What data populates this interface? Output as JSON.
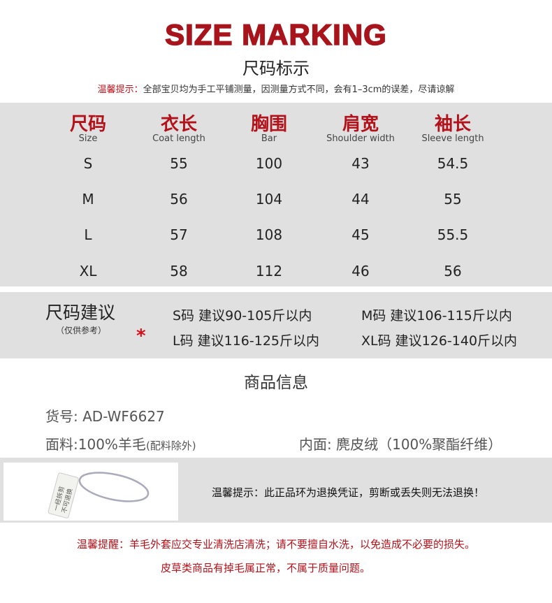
{
  "title": "SIZE MARKING",
  "subtitle": "尺码标示",
  "notice": {
    "label": "温馨提示：",
    "text": "全部宝贝均为手工平铺测量，因测量方式不同，会有1–3cm的误差，尽请谅解"
  },
  "table": {
    "headers": [
      {
        "cn": "尺码",
        "en": "Size"
      },
      {
        "cn": "衣长",
        "en": "Coat length"
      },
      {
        "cn": "胸围",
        "en": "Bar"
      },
      {
        "cn": "肩宽",
        "en": "Shoulder width"
      },
      {
        "cn": "袖长",
        "en": "Sleeve length"
      }
    ],
    "rows": [
      [
        "S",
        "55",
        "100",
        "43",
        "54.5"
      ],
      [
        "M",
        "56",
        "104",
        "44",
        "55"
      ],
      [
        "L",
        "57",
        "108",
        "45",
        "55.5"
      ],
      [
        "XL",
        "58",
        "112",
        "46",
        "56"
      ]
    ]
  },
  "suggestion": {
    "title": "尺码建议",
    "note": "（仅供参考）",
    "star": "*",
    "items": [
      "S码 建议90-105斤以内",
      "M码 建议106-115斤以内",
      "L码 建议116-125斤以内",
      "XL码 建议126-140斤以内"
    ]
  },
  "product": {
    "title": "商品信息",
    "sku_label": "货号:",
    "sku": "AD-WF6627",
    "fabric_label": "面料:",
    "fabric": "100%羊毛",
    "fabric_note": "(配料除外)",
    "lining_label": "内面:",
    "lining": "麂皮绒（100%聚酯纤维）"
  },
  "tag": {
    "image_text": "一经拆剪 不可退换",
    "notice": "温馨提示：此正品环为退换凭证，剪断或丢失则无法退换！"
  },
  "care": [
    "温馨提醒：羊毛外套应交专业清洗店清洗；请不要擅自水洗，以免造成不必要的损失。",
    "皮草类商品有掉毛属正常，不属于质量问题。"
  ],
  "colors": {
    "accent": "#a8141c",
    "band": "#e0e0e0"
  }
}
